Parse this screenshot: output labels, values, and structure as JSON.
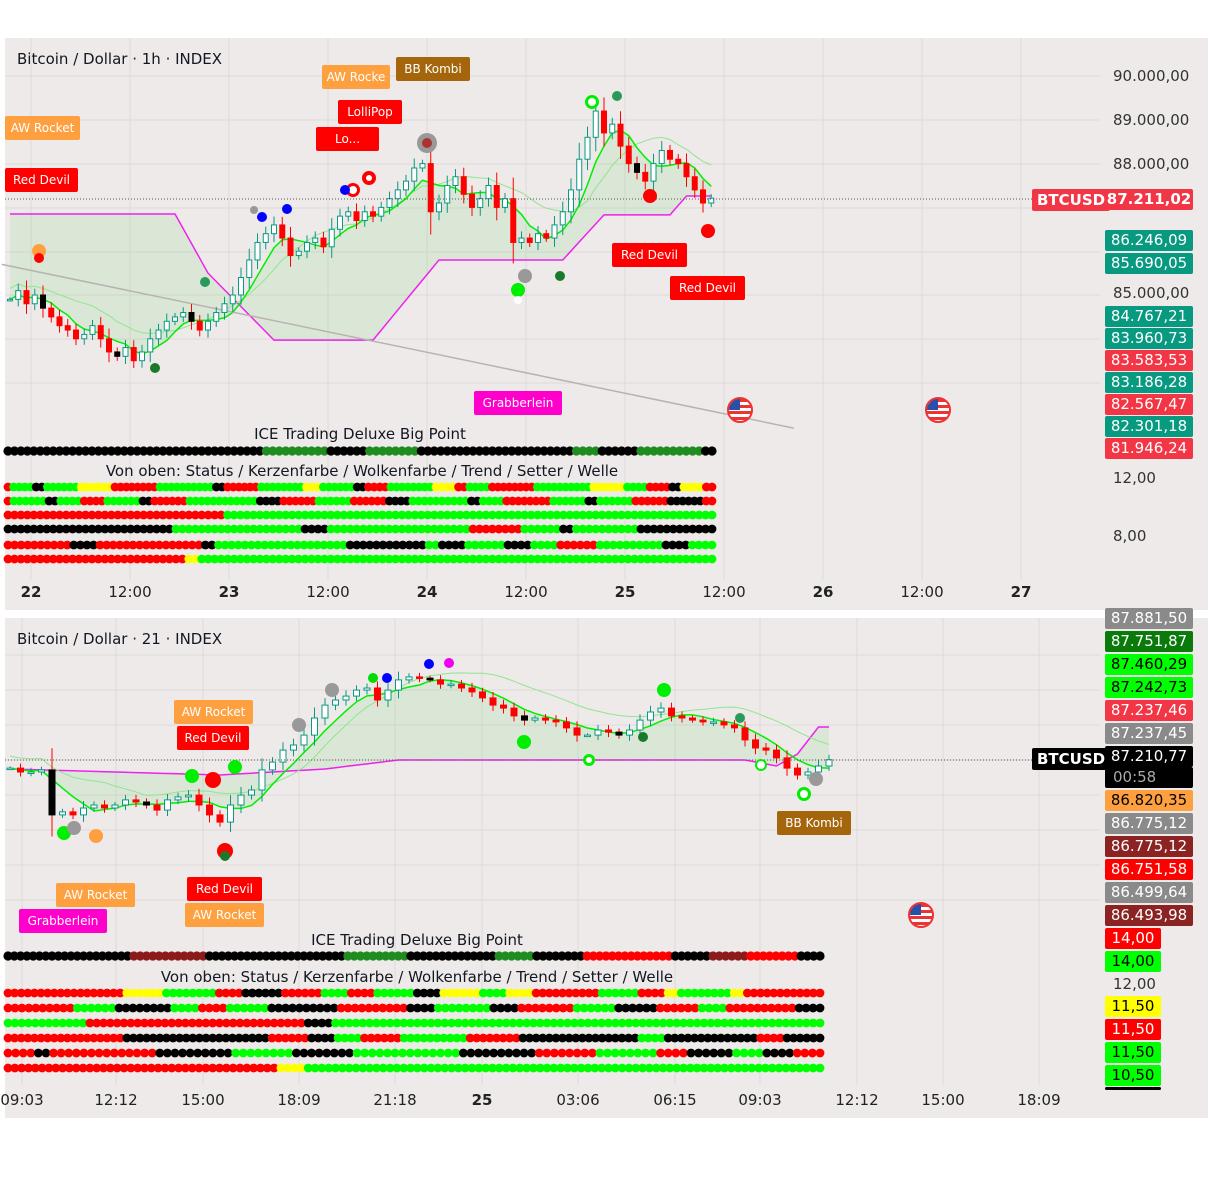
{
  "top": {
    "title": "Bitcoin / Dollar · 1h · INDEX",
    "price_ticks": [
      "90.000,00",
      "89.000,00",
      "88.000,00",
      "85.000,00",
      "12,00",
      "8,00"
    ],
    "symbol": "BTCUSD",
    "price_labels": [
      {
        "text": "87.211,02",
        "color": "#f23645"
      },
      {
        "text": "86.246,09",
        "color": "#089981"
      },
      {
        "text": "85.690,05",
        "color": "#089981"
      },
      {
        "text": "84.767,21",
        "color": "#089981"
      },
      {
        "text": "83.960,73",
        "color": "#089981"
      },
      {
        "text": "83.583,53",
        "color": "#f23645"
      },
      {
        "text": "83.186,28",
        "color": "#089981"
      },
      {
        "text": "82.567,47",
        "color": "#f23645"
      },
      {
        "text": "82.301,18",
        "color": "#089981"
      },
      {
        "text": "81.946,24",
        "color": "#f23645"
      }
    ],
    "time_ticks": [
      "22",
      "12:00",
      "23",
      "12:00",
      "24",
      "12:00",
      "25",
      "12:00",
      "26",
      "12:00",
      "27"
    ],
    "indicator_title": "ICE Trading Deluxe Big Point",
    "indicator_subtitle": "Von oben: Status / Kerzenfarbe / Wolkenfarbe / Trend / Setter / Welle",
    "signals": [
      "AW Rocket",
      "Red Devil",
      "AW Rocke",
      "BB Kombi",
      "LolliPop",
      "Lo...",
      "Red Devil",
      "Red Devil",
      "Grabberlein"
    ]
  },
  "bottom": {
    "title": "Bitcoin / Dollar · 21 · INDEX",
    "symbol": "BTCUSD",
    "price_labels": [
      {
        "text": "87.881,50",
        "color": "#8a8a8a"
      },
      {
        "text": "87.751,87",
        "color": "#0a7a0a"
      },
      {
        "text": "87.460,29",
        "color": "#00ff00",
        "dark": true
      },
      {
        "text": "87.242,73",
        "color": "#00ff00",
        "dark": true
      },
      {
        "text": "87.237,46",
        "color": "#f23645"
      },
      {
        "text": "87.237,45",
        "color": "#8a8a8a"
      },
      {
        "text": "87.210,77",
        "color": "#000000"
      },
      {
        "text": "86.820,35",
        "color": "#ffa040",
        "dark": true
      },
      {
        "text": "86.775,12",
        "color": "#8a8a8a"
      },
      {
        "text": "86.775,12",
        "color": "#8b2323"
      },
      {
        "text": "86.751,58",
        "color": "#ff0000"
      },
      {
        "text": "86.499,64",
        "color": "#8a8a8a"
      },
      {
        "text": "86.493,98",
        "color": "#8b2323"
      }
    ],
    "countdown": "00:58",
    "indicator_labels": [
      {
        "text": "14,00",
        "color": "#ff0000"
      },
      {
        "text": "14,00",
        "color": "#00ff00",
        "dark": true
      },
      {
        "text": "11,50",
        "color": "#ffff00",
        "dark": true
      },
      {
        "text": "11,50",
        "color": "#ff0000"
      },
      {
        "text": "11,50",
        "color": "#00ff00",
        "dark": true
      },
      {
        "text": "10,50",
        "color": "#00ff00",
        "dark": true
      }
    ],
    "indicator_tick": "12,00",
    "time_ticks": [
      "09:03",
      "12:12",
      "15:00",
      "18:09",
      "21:18",
      "25",
      "03:06",
      "06:15",
      "09:03",
      "12:12",
      "15:00",
      "18:09"
    ],
    "indicator_title": "ICE Trading Deluxe Big Point",
    "indicator_subtitle": "Von oben: Status / Kerzenfarbe / Wolkenfarbe / Trend / Setter / Welle",
    "signals": [
      "AW Rocket",
      "Red Devil",
      "Grabberlein",
      "AW Rocket",
      "Red Devil",
      "AW Rocket",
      "BB Kombi"
    ]
  },
  "colors": {
    "up": "#089981",
    "down": "#ff0000",
    "cloud": "#00ee00",
    "magenta": "#ee22ee",
    "g": "#00ff00",
    "G": "#1e8c1e",
    "r": "#ff0000",
    "R": "#8b1a1a",
    "k": "#000000",
    "y": "#ffff00"
  },
  "chart_data": [
    {
      "type": "candlestick",
      "title": "Bitcoin / Dollar · 1h · INDEX",
      "ylim": [
        81900,
        90500
      ],
      "closes": [
        84900,
        85100,
        84800,
        85000,
        84700,
        84500,
        84300,
        84200,
        84000,
        84100,
        84300,
        84000,
        83700,
        83600,
        83800,
        83500,
        83700,
        84000,
        84200,
        84400,
        84500,
        84600,
        84400,
        84200,
        84400,
        84600,
        84800,
        85000,
        85400,
        85800,
        86200,
        86400,
        86600,
        86300,
        85900,
        86000,
        86200,
        86300,
        86100,
        86500,
        86800,
        86900,
        86700,
        86900,
        86800,
        87000,
        87200,
        87400,
        87600,
        87900,
        88000,
        86900,
        87100,
        87500,
        87700,
        87300,
        87000,
        87200,
        87500,
        87000,
        87200,
        86200,
        86300,
        86200,
        86400,
        86300,
        86600,
        86900,
        87400,
        88100,
        88600,
        89200,
        88700,
        88900,
        88400,
        88000,
        87800,
        87600,
        88000,
        88300,
        88100,
        88000,
        87700,
        87400,
        87100,
        87211
      ],
      "magenta": [
        [
          0,
          86850
        ],
        [
          20,
          86850
        ],
        [
          24,
          85500
        ],
        [
          32,
          83970
        ],
        [
          44,
          83970
        ],
        [
          52,
          85800
        ],
        [
          67,
          85800
        ],
        [
          72,
          86830
        ],
        [
          80,
          86830
        ],
        [
          82,
          87260
        ],
        [
          85,
          87260
        ]
      ],
      "trendline": [
        [
          -1,
          85700
        ],
        [
          95,
          81960
        ]
      ],
      "indicator_rows": [
        "k40G10k6G8k24G4k6G10k2",
        "r1g4k2g6y6r8g10k2r6g8y3g6k2r4g8y4r2g4r8g10y6g4r4k2y4r2",
        "r1g6k2g4r4g6k2r6g12k4r6g6r6k4g10k2g4r8g6k2g6r6k6r2",
        "r34g76",
        "k26g20k4g22r8g6k2g10k12",
        "r10k4r16k2g20k12g2k4g6k4g4r6g10k4g4",
        "r28y2g80"
      ]
    },
    {
      "type": "candlestick",
      "title": "Bitcoin / Dollar · 21 · INDEX",
      "closes": [
        87183,
        87170,
        87170,
        87177,
        87027,
        87037,
        87027,
        87050,
        87060,
        87050,
        87060,
        87077,
        87070,
        87060,
        87043,
        87077,
        87087,
        87093,
        87060,
        87027,
        87003,
        87060,
        87093,
        87110,
        87177,
        87203,
        87243,
        87260,
        87293,
        87350,
        87393,
        87410,
        87423,
        87443,
        87450,
        87410,
        87443,
        87477,
        87487,
        87483,
        87477,
        87463,
        87463,
        87450,
        87437,
        87417,
        87393,
        87383,
        87357,
        87343,
        87350,
        87343,
        87337,
        87317,
        87293,
        87293,
        87310,
        87303,
        87293,
        87310,
        87343,
        87370,
        87383,
        87357,
        87350,
        87343,
        87337,
        87337,
        87327,
        87317,
        87277,
        87250,
        87243,
        87217,
        87183,
        87160,
        87170,
        87190,
        87211
      ],
      "magenta": [
        [
          0,
          87180
        ],
        [
          20,
          87160
        ],
        [
          30,
          87180
        ],
        [
          37,
          87210
        ],
        [
          70,
          87210
        ],
        [
          73,
          87190
        ],
        [
          75,
          87230
        ],
        [
          77,
          87320
        ],
        [
          78,
          87320
        ]
      ],
      "indicator_rows": [
        "k20R12k22G10k14G6k8r14k6R6r8k4",
        "r18y6g8r4k6r6g4r4g6k4y6g4y4r10g6r4y2g8y2r12",
        "r10g6k8g4r4g6k10r10k4g8k4r8g6k6r6g4r10k4",
        "g12r32k4g72",
        "r18k22r6k4g4r6g10r8k18g4k14r4k6",
        "r4k2r14k10g8k8g14k10r8g8r4k6g4k4r4",
        "r40y4g76"
      ]
    }
  ]
}
